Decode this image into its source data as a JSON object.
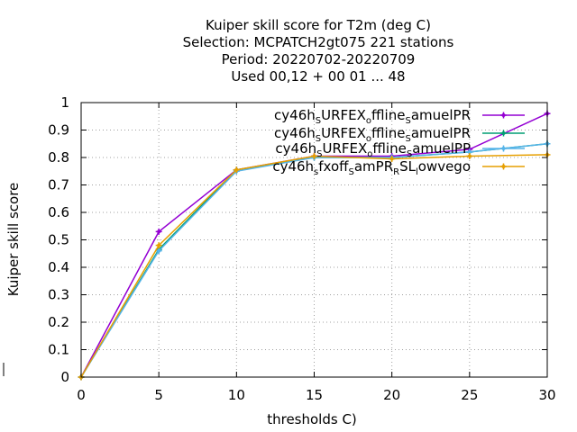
{
  "chart_data": {
    "type": "line",
    "title_lines": [
      "Kuiper skill score  for T2m (deg C)",
      "Selection: MCPATCH2gt075    221 stations",
      "Period: 20220702-20220709",
      "Used  00,12  + 00 01 ... 48"
    ],
    "xlabel": "thresholds C)",
    "ylabel": "Kuiper skill score",
    "x": [
      0,
      5,
      10,
      15,
      20,
      25,
      30
    ],
    "xlim": [
      0,
      30
    ],
    "ylim": [
      0,
      1
    ],
    "x_ticks": [
      "0",
      "5",
      "10",
      "15",
      "20",
      "25",
      "30"
    ],
    "y_ticks": [
      "0",
      "0.1",
      "0.2",
      "0.3",
      "0.4",
      "0.5",
      "0.6",
      "0.7",
      "0.8",
      "0.9",
      "1"
    ],
    "grid": true,
    "legend_position": "top-right",
    "series": [
      {
        "name": "cy46h_SURFEX_offline_samuelPR",
        "legend_parts": [
          [
            "cy46h",
            "n"
          ],
          [
            "S",
            "s"
          ],
          [
            "URFEX",
            "n"
          ],
          [
            "o",
            "s"
          ],
          [
            "ffline",
            "n"
          ],
          [
            "S",
            "s"
          ],
          [
            "amuelPR",
            "n"
          ]
        ],
        "color": "#9400d3",
        "values": [
          0,
          0.53,
          0.755,
          0.805,
          0.805,
          0.83,
          0.96
        ]
      },
      {
        "name": "cy46h_SURFEX_offline_samuelPR",
        "legend_parts": [
          [
            "cy46h",
            "n"
          ],
          [
            "S",
            "s"
          ],
          [
            "URFEX",
            "n"
          ],
          [
            "o",
            "s"
          ],
          [
            "ffline",
            "n"
          ],
          [
            "S",
            "s"
          ],
          [
            "amuelPR",
            "n"
          ]
        ],
        "color": "#009e73",
        "values": [
          0,
          0.465,
          0.755,
          0.8,
          0.8,
          0.82,
          0.85
        ]
      },
      {
        "name": "cy46h_SURFEX_offline_samuelPP",
        "legend_parts": [
          [
            "cy46h",
            "n"
          ],
          [
            "S",
            "s"
          ],
          [
            "URFEX",
            "n"
          ],
          [
            "o",
            "s"
          ],
          [
            "ffline",
            "n"
          ],
          [
            "S",
            "s"
          ],
          [
            "amuelPP",
            "n"
          ]
        ],
        "color": "#56b4e9",
        "values": [
          0,
          0.46,
          0.75,
          0.8,
          0.8,
          0.82,
          0.85
        ]
      },
      {
        "name": "cy46h_sfxoff_samPR_RSL_lowvego",
        "legend_parts": [
          [
            "cy46h",
            "n"
          ],
          [
            "s",
            "s"
          ],
          [
            "fxoff",
            "n"
          ],
          [
            "S",
            "s"
          ],
          [
            "amPR",
            "n"
          ],
          [
            "R",
            "s"
          ],
          [
            "SL",
            "n"
          ],
          [
            "l",
            "s"
          ],
          [
            "owvego",
            "n"
          ]
        ],
        "color": "#e69f00",
        "values": [
          0,
          0.48,
          0.755,
          0.805,
          0.795,
          0.805,
          0.81
        ]
      }
    ]
  }
}
